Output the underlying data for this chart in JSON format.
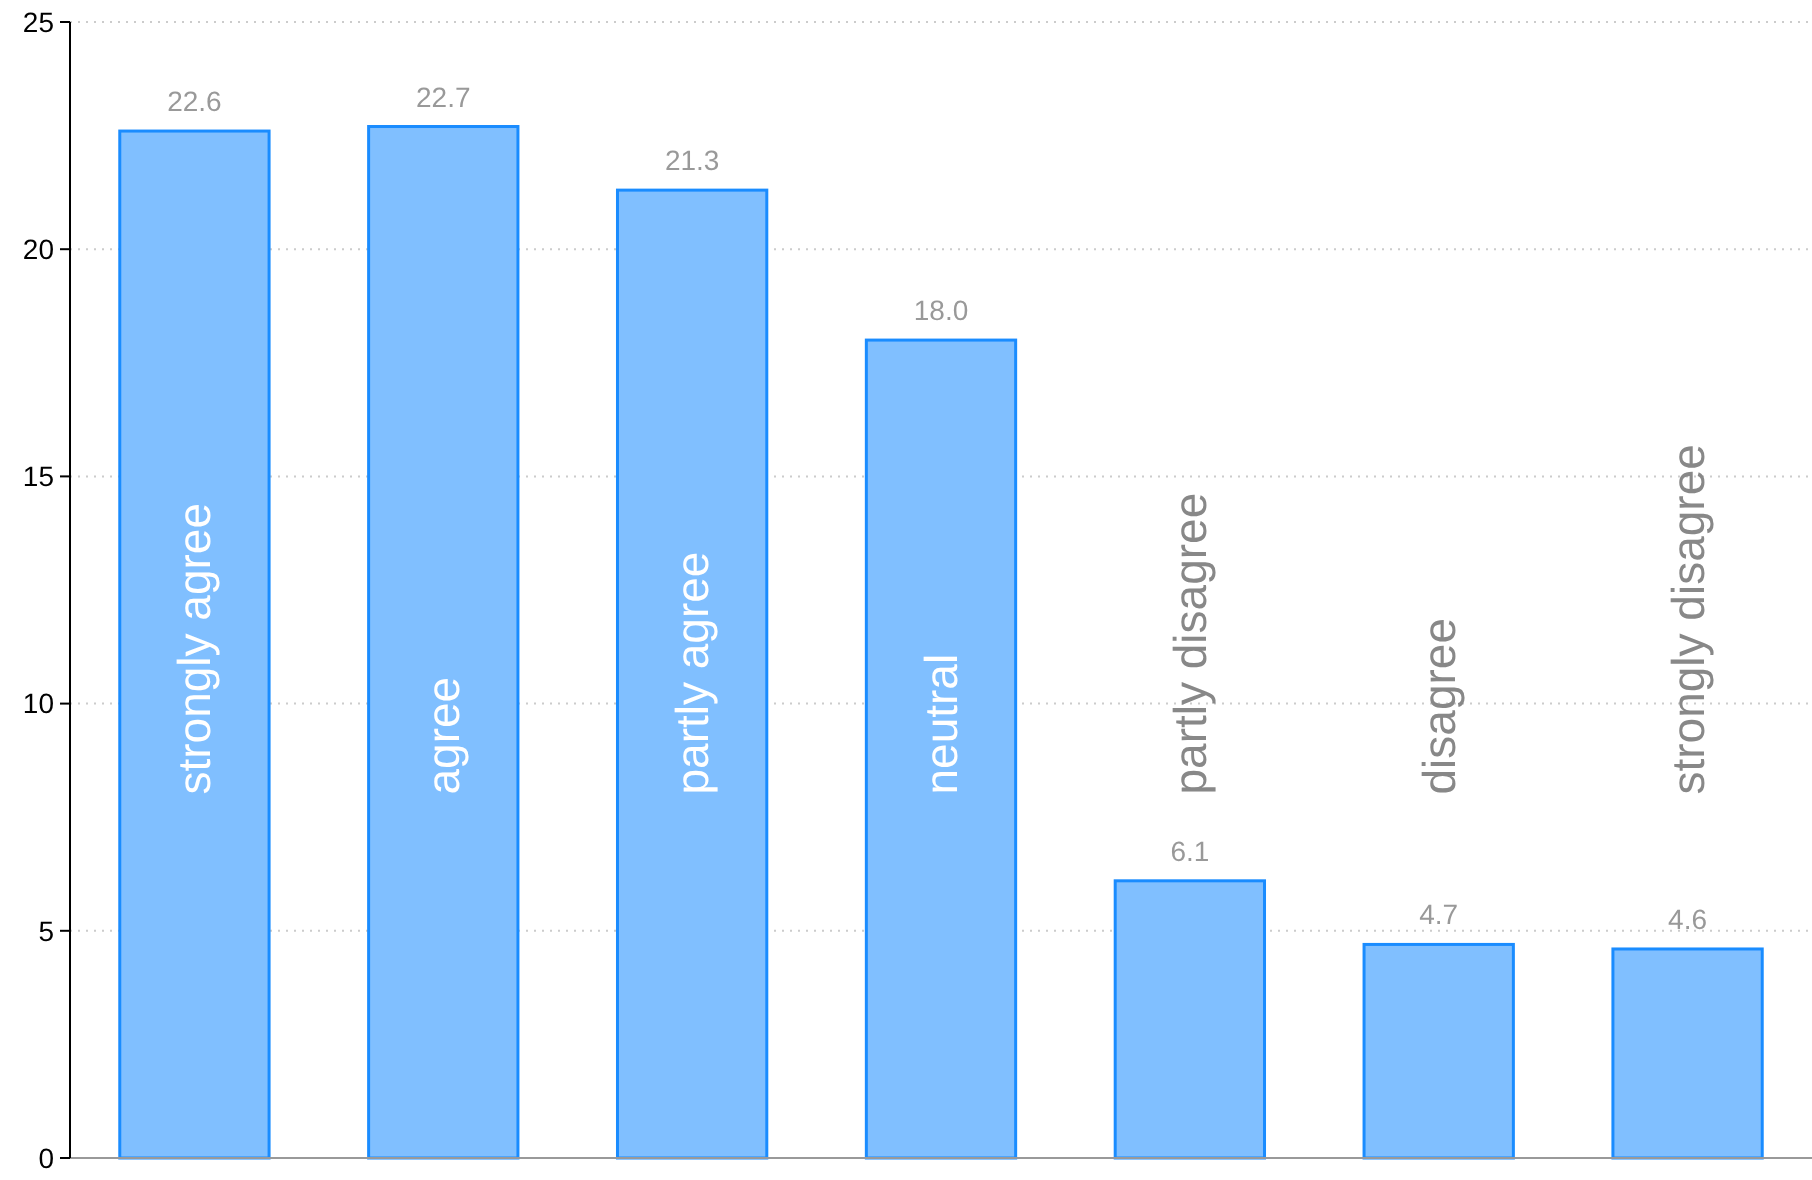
{
  "chart_data": {
    "type": "bar",
    "categories": [
      "strongly agree",
      "agree",
      "partly agree",
      "neutral",
      "partly disagree",
      "disagree",
      "strongly disagree"
    ],
    "values": [
      22.6,
      22.7,
      21.3,
      18.0,
      6.1,
      4.7,
      4.6
    ],
    "value_labels": [
      "22.6",
      "22.7",
      "21.3",
      "18.0",
      "6.1",
      "4.7",
      "4.6"
    ],
    "color": "#80bfff",
    "ylim": [
      0,
      25
    ],
    "yticks": [
      0,
      5,
      10,
      15,
      20,
      25
    ],
    "grid": "y"
  }
}
